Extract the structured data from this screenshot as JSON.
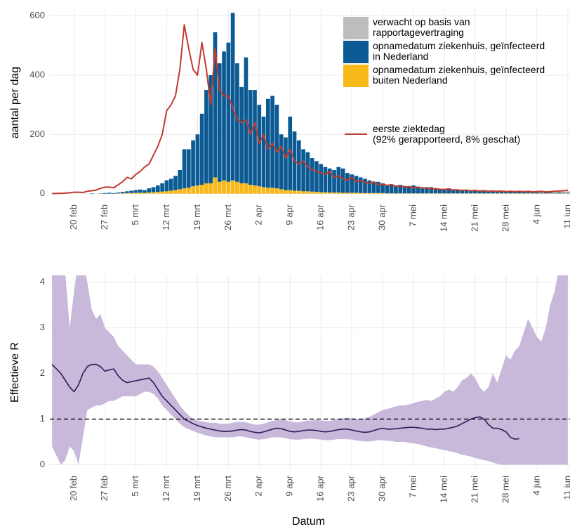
{
  "chart_data": [
    {
      "type": "bar",
      "stacked": true,
      "ylabel": "aantal per dag",
      "categories": [
        null,
        null,
        null,
        null,
        null,
        "20 feb",
        null,
        null,
        null,
        null,
        null,
        null,
        "27 feb",
        null,
        null,
        null,
        null,
        null,
        null,
        "5 mrt",
        null,
        null,
        null,
        null,
        null,
        null,
        "12 mrt",
        null,
        null,
        null,
        null,
        null,
        null,
        "19 mrt",
        null,
        null,
        null,
        null,
        null,
        null,
        "26 mrt",
        null,
        null,
        null,
        null,
        null,
        null,
        "2 apr",
        null,
        null,
        null,
        null,
        null,
        null,
        "9 apr",
        null,
        null,
        null,
        null,
        null,
        null,
        "16 apr",
        null,
        null,
        null,
        null,
        null,
        null,
        "23 apr",
        null,
        null,
        null,
        null,
        null,
        null,
        "30 apr",
        null,
        null,
        null,
        null,
        null,
        null,
        "7 mei",
        null,
        null,
        null,
        null,
        null,
        null,
        "14 mei",
        null,
        null,
        null,
        null,
        null,
        null,
        "21 mei",
        null,
        null,
        null,
        null,
        null,
        null,
        "28 mei",
        null,
        null,
        null,
        null,
        null,
        null,
        "4 jun",
        null,
        null,
        null,
        null,
        null,
        null,
        "11 jun"
      ],
      "series": [
        {
          "name": "verwacht op basis van\nrapportagevertraging",
          "color": "#bdbdbd",
          "values": [
            0,
            0,
            0,
            0,
            0,
            0,
            0,
            0,
            0,
            0,
            0,
            0,
            0,
            0,
            0,
            0,
            0,
            0,
            0,
            0,
            0,
            0,
            0,
            0,
            0,
            0,
            0,
            0,
            0,
            0,
            0,
            0,
            0,
            0,
            0,
            0,
            0,
            0,
            0,
            0,
            0,
            0,
            0,
            0,
            0,
            0,
            0,
            0,
            0,
            0,
            0,
            0,
            0,
            0,
            0,
            0,
            0,
            0,
            0,
            0,
            0,
            0,
            0,
            0,
            0,
            0,
            0,
            0,
            0,
            0,
            0,
            0,
            0,
            0,
            0,
            0,
            0,
            0,
            0,
            0,
            0,
            0,
            0,
            0,
            0,
            0,
            0,
            0,
            0,
            0,
            0,
            0,
            0,
            0,
            0,
            0,
            0,
            0,
            0,
            0,
            0,
            0,
            0,
            0,
            0,
            0,
            0,
            0,
            0,
            0,
            1,
            1,
            1,
            2,
            2,
            3,
            4,
            5
          ]
        },
        {
          "name": "opnamedatum ziekenhuis, geïnfecteerd\nin Nederland",
          "color": "#0b5a93",
          "values": [
            0,
            0,
            0,
            0,
            0,
            0,
            0,
            0,
            0,
            1,
            0,
            1,
            2,
            3,
            2,
            3,
            5,
            6,
            8,
            9,
            11,
            9,
            14,
            17,
            22,
            28,
            37,
            40,
            48,
            65,
            132,
            130,
            155,
            172,
            240,
            315,
            365,
            490,
            400,
            435,
            470,
            565,
            400,
            325,
            425,
            320,
            322,
            275,
            238,
            300,
            310,
            282,
            185,
            178,
            248,
            200,
            170,
            142,
            132,
            113,
            104,
            95,
            85,
            81,
            76,
            86,
            82,
            67,
            62,
            57,
            53,
            48,
            43,
            38,
            38,
            33,
            29,
            31,
            27,
            29,
            25,
            24,
            27,
            23,
            21,
            19,
            21,
            17,
            16,
            15,
            17,
            14,
            13,
            11,
            12,
            11,
            10,
            9,
            11,
            9,
            8,
            7,
            8,
            7,
            6,
            5,
            6,
            5,
            4,
            5,
            4,
            3,
            4,
            3,
            2,
            3,
            2,
            2
          ]
        },
        {
          "name": "opnamedatum ziekenhuis, geïnfecteerd\nbuiten Nederland",
          "color": "#f7b81a",
          "values": [
            0,
            0,
            0,
            0,
            0,
            0,
            0,
            0,
            0,
            0,
            0,
            0,
            0,
            0,
            0,
            1,
            1,
            2,
            2,
            3,
            3,
            3,
            4,
            5,
            6,
            7,
            8,
            10,
            12,
            15,
            18,
            20,
            25,
            28,
            30,
            35,
            35,
            55,
            40,
            45,
            40,
            45,
            40,
            35,
            35,
            30,
            28,
            25,
            22,
            20,
            20,
            18,
            15,
            12,
            12,
            10,
            10,
            8,
            8,
            7,
            6,
            5,
            5,
            4,
            4,
            4,
            3,
            3,
            3,
            3,
            2,
            2,
            2,
            2,
            2,
            2,
            1,
            1,
            1,
            1,
            1,
            1,
            1,
            1,
            1,
            1,
            1,
            1,
            1,
            1,
            1,
            1,
            1,
            1,
            1,
            1,
            1,
            1,
            1,
            1,
            1,
            1,
            1,
            1,
            1,
            1,
            1,
            1,
            1,
            1,
            1,
            1,
            1,
            1,
            1,
            1,
            1,
            1
          ]
        },
        {
          "name": "eerste ziektedag\n(92% gerapporteerd, 8% geschat)",
          "type": "line",
          "color": "#c23b30",
          "values": [
            0,
            1,
            1,
            2,
            3,
            5,
            5,
            4,
            8,
            10,
            12,
            18,
            22,
            22,
            20,
            30,
            40,
            55,
            50,
            65,
            75,
            90,
            100,
            130,
            160,
            200,
            280,
            300,
            330,
            420,
            570,
            490,
            420,
            400,
            510,
            420,
            300,
            490,
            350,
            330,
            330,
            290,
            250,
            240,
            250,
            200,
            240,
            170,
            200,
            150,
            170,
            140,
            160,
            120,
            150,
            110,
            100,
            110,
            90,
            80,
            75,
            70,
            65,
            75,
            55,
            60,
            50,
            45,
            55,
            40,
            45,
            38,
            35,
            40,
            30,
            32,
            28,
            30,
            25,
            26,
            22,
            24,
            20,
            22,
            18,
            20,
            16,
            17,
            15,
            14,
            16,
            12,
            13,
            11,
            12,
            10,
            11,
            9,
            10,
            8,
            9,
            8,
            9,
            7,
            8,
            7,
            8,
            7,
            8,
            6,
            7,
            8,
            6,
            7,
            8,
            9,
            10,
            12
          ]
        }
      ],
      "ylim": [
        -15,
        630
      ],
      "yticks": [
        0,
        200,
        400,
        600
      ],
      "grid": true,
      "legend": "top-right"
    },
    {
      "type": "line",
      "ylabel": "Effectieve R",
      "xlabel": "Datum",
      "categories": [
        null,
        null,
        null,
        null,
        null,
        "20 feb",
        null,
        null,
        null,
        null,
        null,
        null,
        "27 feb",
        null,
        null,
        null,
        null,
        null,
        null,
        "5 mrt",
        null,
        null,
        null,
        null,
        null,
        null,
        "12 mrt",
        null,
        null,
        null,
        null,
        null,
        null,
        "19 mrt",
        null,
        null,
        null,
        null,
        null,
        null,
        "26 mrt",
        null,
        null,
        null,
        null,
        null,
        null,
        "2 apr",
        null,
        null,
        null,
        null,
        null,
        null,
        "9 apr",
        null,
        null,
        null,
        null,
        null,
        null,
        "16 apr",
        null,
        null,
        null,
        null,
        null,
        null,
        "23 apr",
        null,
        null,
        null,
        null,
        null,
        null,
        "30 apr",
        null,
        null,
        null,
        null,
        null,
        null,
        "7 mei",
        null,
        null,
        null,
        null,
        null,
        null,
        "14 mei",
        null,
        null,
        null,
        null,
        null,
        null,
        "21 mei",
        null,
        null,
        null,
        null,
        null,
        null,
        "28 mei",
        null,
        null,
        null,
        null,
        null,
        null,
        "4 jun",
        null,
        null,
        null,
        null,
        null,
        null,
        "11 jun"
      ],
      "series": [
        {
          "color": "#2d1b58",
          "values": [
            2.2,
            2.1,
            2,
            1.85,
            1.7,
            1.6,
            1.75,
            2,
            2.15,
            2.2,
            2.2,
            2.15,
            2.05,
            2.08,
            2.1,
            1.95,
            1.85,
            1.8,
            1.82,
            1.84,
            1.86,
            1.88,
            1.9,
            1.8,
            1.65,
            1.5,
            1.4,
            1.3,
            1.2,
            1.1,
            1,
            0.95,
            0.9,
            0.86,
            0.83,
            0.8,
            0.78,
            0.76,
            0.74,
            0.73,
            0.73,
            0.74,
            0.76,
            0.77,
            0.76,
            0.73,
            0.71,
            0.7,
            0.72,
            0.75,
            0.78,
            0.8,
            0.79,
            0.76,
            0.73,
            0.72,
            0.73,
            0.75,
            0.76,
            0.76,
            0.75,
            0.73,
            0.72,
            0.73,
            0.75,
            0.77,
            0.78,
            0.78,
            0.76,
            0.74,
            0.72,
            0.71,
            0.72,
            0.75,
            0.78,
            0.8,
            0.78,
            0.78,
            0.79,
            0.8,
            0.81,
            0.82,
            0.82,
            0.81,
            0.8,
            0.78,
            0.78,
            0.77,
            0.78,
            0.78,
            0.8,
            0.82,
            0.85,
            0.9,
            0.95,
            1,
            1.03,
            1.05,
            1,
            0.88,
            0.8,
            0.8,
            0.77,
            0.72,
            0.6,
            0.56,
            0.57,
            null,
            null,
            null,
            null,
            null,
            null,
            null,
            null,
            null,
            null,
            null
          ]
        }
      ],
      "band": {
        "color": "#c8b8da",
        "low": [
          0.4,
          0.2,
          0,
          0.1,
          0.4,
          0.3,
          0,
          0.6,
          1.2,
          1.25,
          1.3,
          1.3,
          1.35,
          1.4,
          1.4,
          1.45,
          1.5,
          1.5,
          1.5,
          1.5,
          1.55,
          1.6,
          1.6,
          1.55,
          1.45,
          1.3,
          1.2,
          1.1,
          1,
          0.9,
          0.82,
          0.78,
          0.74,
          0.7,
          0.67,
          0.64,
          0.62,
          0.6,
          0.6,
          0.6,
          0.6,
          0.6,
          0.62,
          0.62,
          0.6,
          0.58,
          0.56,
          0.55,
          0.56,
          0.58,
          0.6,
          0.6,
          0.6,
          0.58,
          0.56,
          0.55,
          0.55,
          0.56,
          0.57,
          0.57,
          0.56,
          0.55,
          0.54,
          0.54,
          0.55,
          0.56,
          0.56,
          0.56,
          0.55,
          0.53,
          0.52,
          0.51,
          0.51,
          0.52,
          0.54,
          0.54,
          0.52,
          0.52,
          0.5,
          0.5,
          0.5,
          0.48,
          0.47,
          0.45,
          0.43,
          0.4,
          0.38,
          0.36,
          0.34,
          0.32,
          0.3,
          0.28,
          0.25,
          0.22,
          0.2,
          0.18,
          0.15,
          0.12,
          0.1,
          0.08,
          0.05,
          0.02,
          0,
          0,
          0,
          0,
          0,
          0,
          0,
          0,
          0,
          0,
          0,
          0,
          0,
          0,
          0,
          0
        ],
        "high": [
          4.2,
          4.2,
          4.2,
          4.2,
          3,
          3.8,
          4.5,
          4.5,
          4,
          3.4,
          3.2,
          3.3,
          3,
          2.9,
          2.8,
          2.6,
          2.5,
          2.4,
          2.3,
          2.2,
          2.2,
          2.2,
          2.2,
          2.15,
          2.05,
          1.9,
          1.75,
          1.6,
          1.45,
          1.3,
          1.18,
          1.08,
          1,
          0.97,
          0.95,
          0.93,
          0.92,
          0.92,
          0.9,
          0.9,
          0.9,
          0.92,
          0.94,
          0.94,
          0.93,
          0.9,
          0.88,
          0.88,
          0.9,
          0.93,
          0.96,
          0.98,
          1,
          0.98,
          0.95,
          0.93,
          0.93,
          0.95,
          0.97,
          0.97,
          0.98,
          0.97,
          0.96,
          0.96,
          0.98,
          1,
          1.02,
          1.03,
          1.02,
          1,
          1,
          1.02,
          1.05,
          1.1,
          1.15,
          1.2,
          1.22,
          1.25,
          1.28,
          1.3,
          1.3,
          1.32,
          1.35,
          1.38,
          1.4,
          1.42,
          1.4,
          1.45,
          1.5,
          1.6,
          1.65,
          1.6,
          1.7,
          1.85,
          1.9,
          2,
          1.9,
          1.7,
          1.6,
          1.7,
          2,
          1.8,
          2.1,
          2.4,
          2.3,
          2.5,
          2.6,
          2.9,
          3.2,
          3,
          2.8,
          2.7,
          3,
          3.5,
          3.8,
          4.3,
          4.6,
          4.8
        ]
      },
      "hline": 1,
      "ylim": [
        -0.1,
        4.15
      ],
      "yticks": [
        0,
        1,
        2,
        3,
        4
      ],
      "grid": true
    }
  ]
}
